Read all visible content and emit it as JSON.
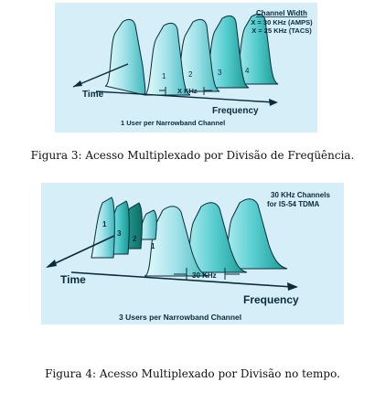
{
  "figure3": {
    "channel_width_title": "Channel Width",
    "channel_width_line1": "X = 30 KHz (AMPS)",
    "channel_width_line2": "X = 25 KHz (TACS)",
    "channel_numbers": [
      "1",
      "2",
      "3",
      "4"
    ],
    "spacing_label": "X KHz",
    "axis_time": "Time",
    "axis_frequency": "Frequency",
    "subtitle": "1 User per Narrowband Channel",
    "caption": "Figura 3: Acesso Multiplexado por Divisão de Freqüência."
  },
  "figure4": {
    "channels_title_line1": "30 KHz Channels",
    "channels_title_line2": "for IS-54 TDMA",
    "slot_numbers": [
      "1",
      "3",
      "2",
      "1"
    ],
    "spacing_label": "30 KHz",
    "axis_time": "Time",
    "axis_frequency": "Frequency",
    "subtitle": "3  Users per Narrowband Channel",
    "caption": "Figura 4: Acesso Multiplexado por Divisão no tempo."
  },
  "colors": {
    "panel": "#d6eef7",
    "channel_fill_light": "#aee9ee",
    "channel_fill_mid": "#5fd0cf",
    "channel_fill_dark": "#1fa89e",
    "outline": "#0b2a3a"
  }
}
